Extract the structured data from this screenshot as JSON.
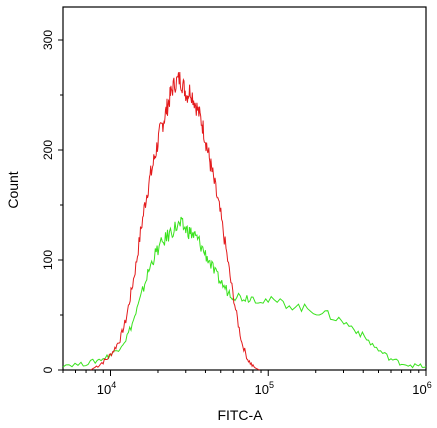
{
  "chart_data": {
    "type": "line",
    "xlabel": "FITC-A",
    "ylabel": "Count",
    "x_scale": "log",
    "xlim": [
      5000,
      1000000
    ],
    "ylim": [
      0,
      330
    ],
    "x_ticks": [
      {
        "value": 10000,
        "base": "10",
        "exp": "4"
      },
      {
        "value": 100000,
        "base": "10",
        "exp": "5"
      },
      {
        "value": 1000000,
        "base": "10",
        "exp": "6"
      }
    ],
    "y_ticks": [
      0,
      100,
      200,
      300
    ],
    "grid": false,
    "series": [
      {
        "color": "#e31a1c",
        "points": [
          [
            7500,
            0
          ],
          [
            8500,
            5
          ],
          [
            9500,
            10
          ],
          [
            10500,
            18
          ],
          [
            11500,
            28
          ],
          [
            12500,
            45
          ],
          [
            13500,
            70
          ],
          [
            14500,
            95
          ],
          [
            15500,
            125
          ],
          [
            16500,
            150
          ],
          [
            17500,
            170
          ],
          [
            18500,
            185
          ],
          [
            19500,
            200
          ],
          [
            20500,
            215
          ],
          [
            21500,
            225
          ],
          [
            22500,
            235
          ],
          [
            23500,
            245
          ],
          [
            24500,
            255
          ],
          [
            26000,
            262
          ],
          [
            27500,
            265
          ],
          [
            29000,
            258
          ],
          [
            30500,
            250
          ],
          [
            32000,
            255
          ],
          [
            34000,
            245
          ],
          [
            36000,
            235
          ],
          [
            38000,
            225
          ],
          [
            40000,
            210
          ],
          [
            42000,
            195
          ],
          [
            44000,
            180
          ],
          [
            47000,
            160
          ],
          [
            50000,
            140
          ],
          [
            54000,
            110
          ],
          [
            58000,
            80
          ],
          [
            63000,
            50
          ],
          [
            68000,
            25
          ],
          [
            74000,
            10
          ],
          [
            80000,
            3
          ],
          [
            88000,
            0
          ]
        ]
      },
      {
        "color": "#39e21d",
        "points": [
          [
            5000,
            5
          ],
          [
            6500,
            5
          ],
          [
            8000,
            8
          ],
          [
            9500,
            12
          ],
          [
            11000,
            18
          ],
          [
            12500,
            28
          ],
          [
            14000,
            45
          ],
          [
            15500,
            65
          ],
          [
            17000,
            85
          ],
          [
            18500,
            100
          ],
          [
            20000,
            110
          ],
          [
            22000,
            118
          ],
          [
            24000,
            125
          ],
          [
            26000,
            130
          ],
          [
            28000,
            132
          ],
          [
            30000,
            128
          ],
          [
            32000,
            125
          ],
          [
            34000,
            122
          ],
          [
            36000,
            118
          ],
          [
            39000,
            108
          ],
          [
            42000,
            100
          ],
          [
            46000,
            88
          ],
          [
            50000,
            80
          ],
          [
            55000,
            72
          ],
          [
            60000,
            68
          ],
          [
            70000,
            66
          ],
          [
            80000,
            66
          ],
          [
            100000,
            63
          ],
          [
            130000,
            60
          ],
          [
            170000,
            56
          ],
          [
            220000,
            52
          ],
          [
            280000,
            46
          ],
          [
            350000,
            38
          ],
          [
            420000,
            28
          ],
          [
            500000,
            18
          ],
          [
            600000,
            10
          ],
          [
            700000,
            6
          ],
          [
            850000,
            4
          ],
          [
            1000000,
            3
          ]
        ]
      }
    ]
  }
}
